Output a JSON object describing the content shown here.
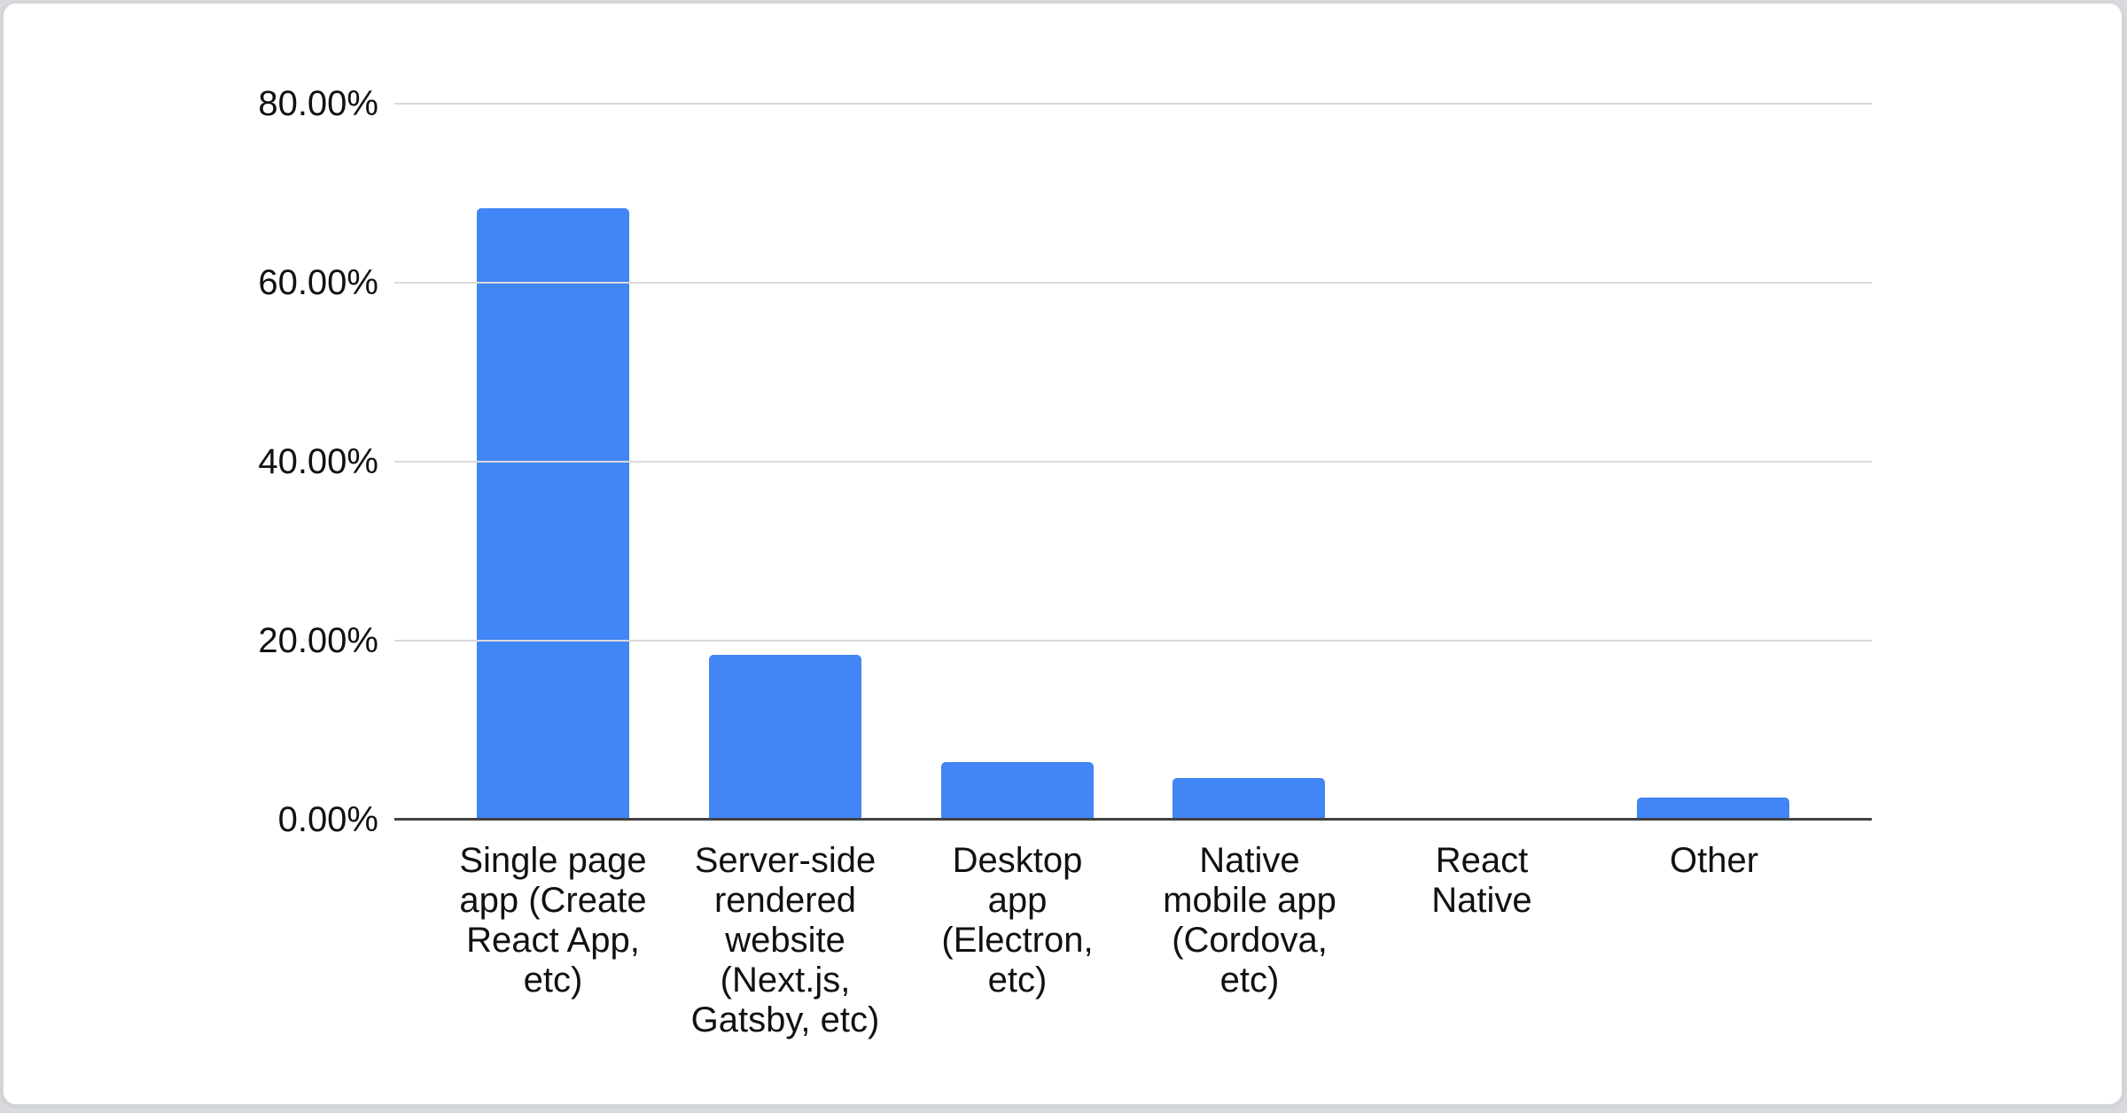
{
  "page": {
    "background": "#d8dadd",
    "card_background": "#ffffff",
    "card_border": "#d3d6da"
  },
  "chart_data": {
    "type": "bar",
    "title": "",
    "xlabel": "",
    "ylabel": "",
    "categories": [
      "Single page app (Create React App, etc)",
      "Server-side rendered website (Next.js, Gatsby, etc)",
      "Desktop app (Electron, etc)",
      "Native mobile app (Cordova, etc)",
      "React Native",
      "Other"
    ],
    "category_label_lines": [
      "Single page\napp (Create\nReact App,\netc)",
      "Server-side\nrendered\nwebsite\n(Next.js,\nGatsby, etc)",
      "Desktop\napp\n(Electron,\netc)",
      "Native\nmobile app\n(Cordova,\netc)",
      "React\nNative",
      "Other"
    ],
    "values": [
      68.3,
      18.4,
      6.4,
      4.7,
      0,
      2.5
    ],
    "value_unit": "%",
    "ylim": [
      0,
      80
    ],
    "ytick_values": [
      0,
      20,
      40,
      60,
      80
    ],
    "ytick_labels": [
      "0.00%",
      "20.00%",
      "40.00%",
      "60.00%",
      "80.00%"
    ],
    "grid": true,
    "legend": "none",
    "bar_color": "#4285f4",
    "gridline_color": "#d9d9d9",
    "axis_line_color": "#424242",
    "label_color": "#111111"
  }
}
